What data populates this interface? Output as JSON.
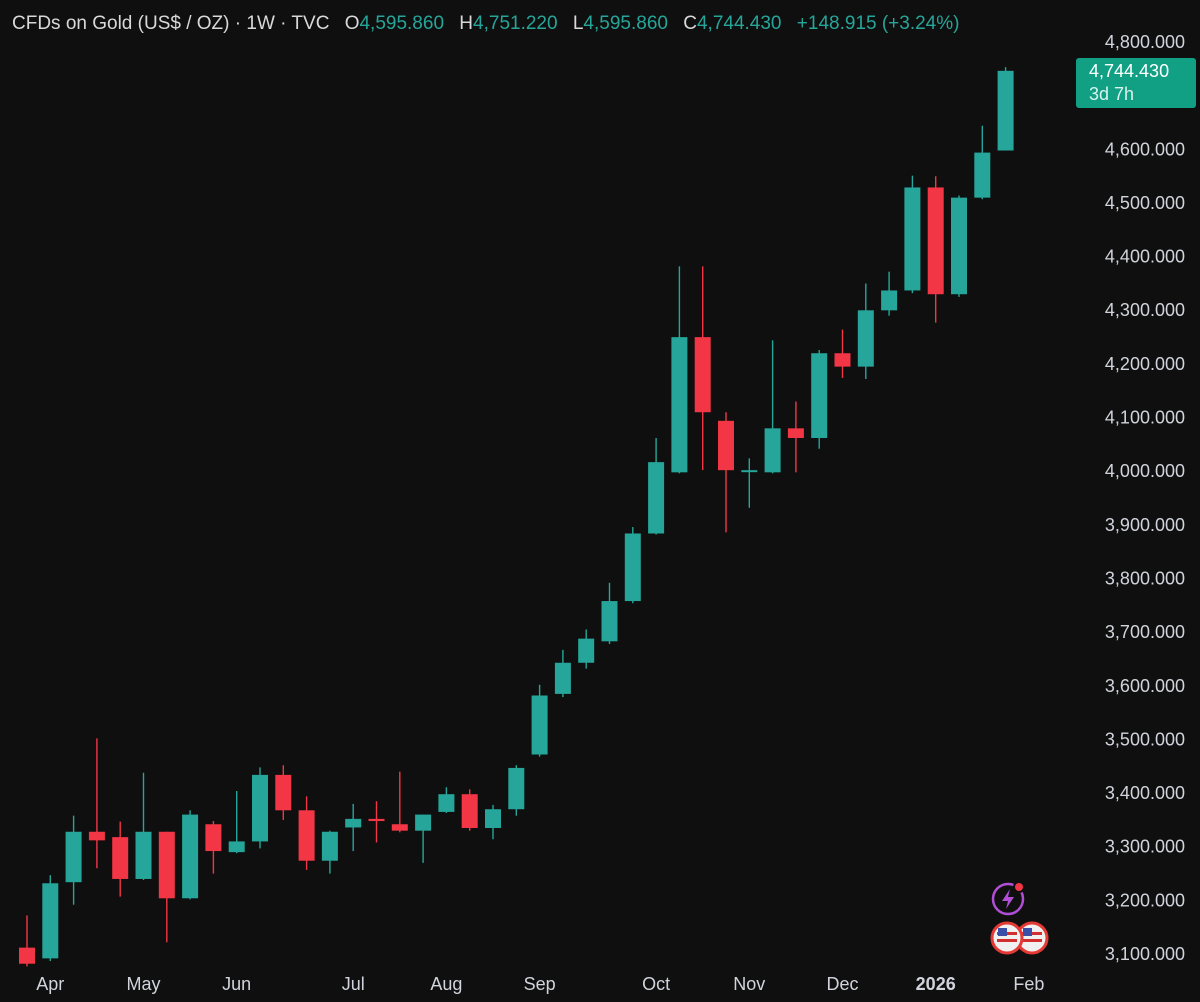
{
  "header": {
    "symbol": "CFDs on Gold (US$ / OZ) · 1W · TVC",
    "open_label": "O",
    "open": "4,595.860",
    "high_label": "H",
    "high": "4,751.220",
    "low_label": "L",
    "low": "4,595.860",
    "close_label": "C",
    "close": "4,744.430",
    "change": "+148.915 (+3.24%)"
  },
  "price_tag": {
    "price": "4,744.430",
    "countdown": "3d 7h"
  },
  "colors": {
    "up": "#26a69a",
    "down": "#f23645",
    "background": "#0f0f0f"
  },
  "icons": [
    "lightning-alert-icon",
    "us-flag-events-icon"
  ],
  "chart_data": {
    "type": "candlestick",
    "title": "",
    "xlabel": "",
    "ylabel": "",
    "ylim": [
      3090,
      4830
    ],
    "grid": false,
    "y_ticks": [
      "4,800.000",
      "4,700.000",
      "4,600.000",
      "4,500.000",
      "4,400.000",
      "4,300.000",
      "4,200.000",
      "4,100.000",
      "4,000.000",
      "3,900.000",
      "3,800.000",
      "3,700.000",
      "3,600.000",
      "3,500.000",
      "3,400.000",
      "3,300.000",
      "3,200.000",
      "3,100.000"
    ],
    "y_tick_values": [
      4800,
      4700,
      4600,
      4500,
      4400,
      4300,
      4200,
      4100,
      4000,
      3900,
      3800,
      3700,
      3600,
      3500,
      3400,
      3300,
      3200,
      3100
    ],
    "x_labels": [
      {
        "label": "Apr",
        "index": 1,
        "bold": false
      },
      {
        "label": "May",
        "index": 5,
        "bold": false
      },
      {
        "label": "Jun",
        "index": 9,
        "bold": false
      },
      {
        "label": "Jul",
        "index": 14,
        "bold": false
      },
      {
        "label": "Aug",
        "index": 18,
        "bold": false
      },
      {
        "label": "Sep",
        "index": 22,
        "bold": false
      },
      {
        "label": "Oct",
        "index": 27,
        "bold": false
      },
      {
        "label": "Nov",
        "index": 31,
        "bold": false
      },
      {
        "label": "Dec",
        "index": 35,
        "bold": false
      },
      {
        "label": "2026",
        "index": 39,
        "bold": true
      },
      {
        "label": "Feb",
        "index": 43,
        "bold": false
      }
    ],
    "candles": [
      {
        "o": 3110,
        "h": 3170,
        "l": 3075,
        "c": 3080
      },
      {
        "o": 3090,
        "h": 3245,
        "l": 3085,
        "c": 3230
      },
      {
        "o": 3232,
        "h": 3356,
        "l": 3190,
        "c": 3326
      },
      {
        "o": 3326,
        "h": 3500,
        "l": 3258,
        "c": 3310
      },
      {
        "o": 3316,
        "h": 3345,
        "l": 3205,
        "c": 3238
      },
      {
        "o": 3238,
        "h": 3436,
        "l": 3236,
        "c": 3326
      },
      {
        "o": 3326,
        "h": 3326,
        "l": 3120,
        "c": 3202
      },
      {
        "o": 3202,
        "h": 3366,
        "l": 3200,
        "c": 3358
      },
      {
        "o": 3340,
        "h": 3346,
        "l": 3248,
        "c": 3290
      },
      {
        "o": 3288,
        "h": 3402,
        "l": 3286,
        "c": 3308
      },
      {
        "o": 3308,
        "h": 3446,
        "l": 3295,
        "c": 3432
      },
      {
        "o": 3432,
        "h": 3450,
        "l": 3348,
        "c": 3366
      },
      {
        "o": 3366,
        "h": 3392,
        "l": 3255,
        "c": 3272
      },
      {
        "o": 3272,
        "h": 3328,
        "l": 3248,
        "c": 3326
      },
      {
        "o": 3334,
        "h": 3378,
        "l": 3290,
        "c": 3350
      },
      {
        "o": 3350,
        "h": 3383,
        "l": 3306,
        "c": 3346
      },
      {
        "o": 3340,
        "h": 3438,
        "l": 3325,
        "c": 3328
      },
      {
        "o": 3328,
        "h": 3358,
        "l": 3268,
        "c": 3358
      },
      {
        "o": 3363,
        "h": 3409,
        "l": 3361,
        "c": 3396
      },
      {
        "o": 3396,
        "h": 3405,
        "l": 3328,
        "c": 3333
      },
      {
        "o": 3333,
        "h": 3376,
        "l": 3312,
        "c": 3368
      },
      {
        "o": 3368,
        "h": 3450,
        "l": 3356,
        "c": 3445
      },
      {
        "o": 3470,
        "h": 3600,
        "l": 3466,
        "c": 3580
      },
      {
        "o": 3583,
        "h": 3665,
        "l": 3577,
        "c": 3641
      },
      {
        "o": 3641,
        "h": 3703,
        "l": 3630,
        "c": 3686
      },
      {
        "o": 3681,
        "h": 3790,
        "l": 3676,
        "c": 3756
      },
      {
        "o": 3756,
        "h": 3894,
        "l": 3752,
        "c": 3882
      },
      {
        "o": 3882,
        "h": 4060,
        "l": 3880,
        "c": 4015
      },
      {
        "o": 3996,
        "h": 4380,
        "l": 3994,
        "c": 4248
      },
      {
        "o": 4248,
        "h": 4380,
        "l": 4000,
        "c": 4108
      },
      {
        "o": 4092,
        "h": 4108,
        "l": 3884,
        "c": 4000
      },
      {
        "o": 4000,
        "h": 4022,
        "l": 3930,
        "c": 4000
      },
      {
        "o": 3996,
        "h": 4242,
        "l": 3994,
        "c": 4078
      },
      {
        "o": 4078,
        "h": 4128,
        "l": 3996,
        "c": 4060
      },
      {
        "o": 4060,
        "h": 4224,
        "l": 4040,
        "c": 4218
      },
      {
        "o": 4218,
        "h": 4262,
        "l": 4172,
        "c": 4193
      },
      {
        "o": 4193,
        "h": 4348,
        "l": 4170,
        "c": 4298
      },
      {
        "o": 4298,
        "h": 4370,
        "l": 4288,
        "c": 4335
      },
      {
        "o": 4335,
        "h": 4549,
        "l": 4330,
        "c": 4527
      },
      {
        "o": 4527,
        "h": 4548,
        "l": 4275,
        "c": 4328
      },
      {
        "o": 4328,
        "h": 4512,
        "l": 4323,
        "c": 4508
      },
      {
        "o": 4508,
        "h": 4642,
        "l": 4505,
        "c": 4592
      },
      {
        "o": 4595.86,
        "h": 4751.22,
        "l": 4595.86,
        "c": 4744.43
      }
    ]
  }
}
